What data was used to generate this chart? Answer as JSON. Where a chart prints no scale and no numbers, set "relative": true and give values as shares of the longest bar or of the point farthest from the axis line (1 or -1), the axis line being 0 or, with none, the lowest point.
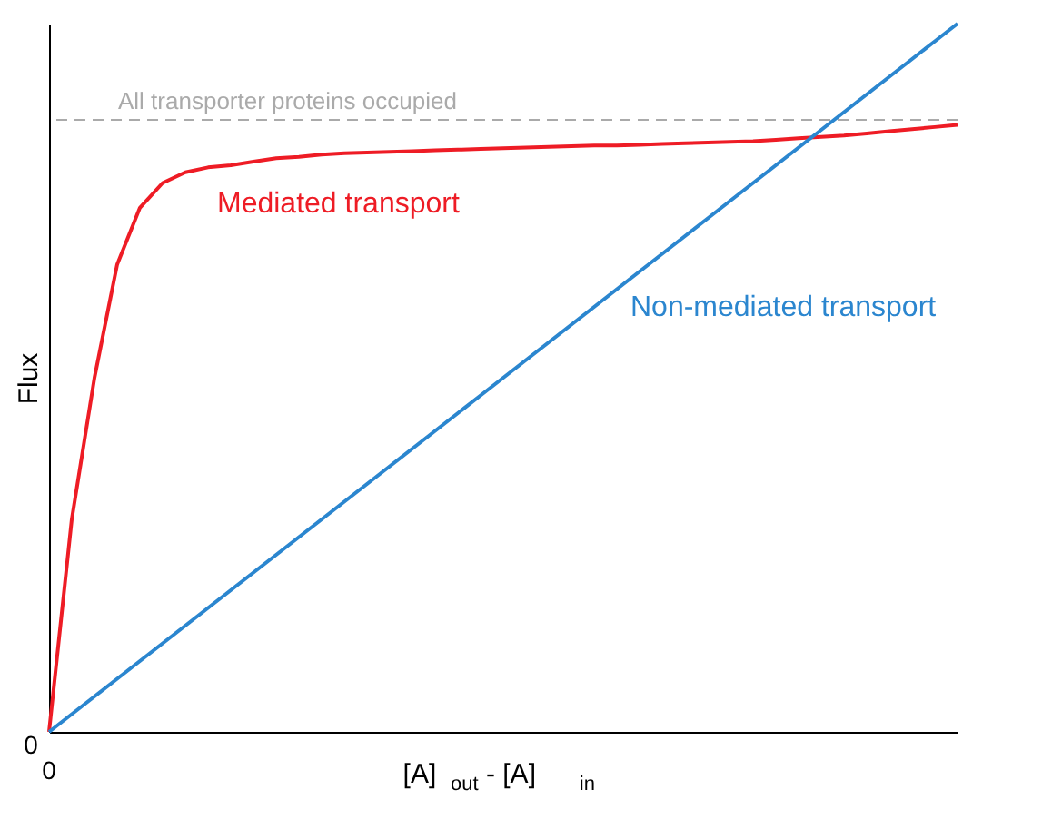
{
  "chart_data": {
    "type": "line",
    "relative": true,
    "xlabel": "[A]$_{out}$ - [A]$_{in}$",
    "ylabel": "Flux",
    "categories": [
      null,
      null,
      null,
      null,
      null,
      null,
      null,
      null,
      null,
      null,
      null,
      null,
      null,
      null,
      null,
      null,
      null,
      null,
      null,
      null,
      null,
      null,
      null,
      null,
      null,
      null,
      null,
      null,
      null,
      null,
      null,
      null,
      null,
      null,
      null,
      null,
      null,
      null,
      null,
      null,
      null
    ],
    "series": [
      {
        "name": "Mediated transport",
        "color": "#ee1c25",
        "values": [
          0,
          0.3,
          0.5,
          0.66,
          0.74,
          0.775,
          0.79,
          0.797,
          0.8,
          0.805,
          0.81,
          0.812,
          0.815,
          0.817,
          0.818,
          0.819,
          0.82,
          0.821,
          0.822,
          0.823,
          0.824,
          0.825,
          0.826,
          0.827,
          0.828,
          0.828,
          0.829,
          0.83,
          0.831,
          0.832,
          0.833,
          0.834,
          0.836,
          0.838,
          0.84,
          0.842,
          0.845,
          0.848,
          0.851,
          0.854,
          0.857
        ]
      },
      {
        "name": "Non-mediated transport",
        "color": "#2b86cf",
        "values": [
          0,
          0.025,
          0.05,
          0.075,
          0.1,
          0.125,
          0.15,
          0.175,
          0.2,
          0.225,
          0.25,
          0.275,
          0.3,
          0.325,
          0.35,
          0.375,
          0.4,
          0.425,
          0.45,
          0.475,
          0.5,
          0.525,
          0.55,
          0.575,
          0.6,
          0.625,
          0.65,
          0.675,
          0.7,
          0.725,
          0.75,
          0.775,
          0.8,
          0.825,
          0.85,
          0.875,
          0.9,
          0.925,
          0.95,
          0.975,
          1
        ]
      }
    ],
    "ref_lines": [
      {
        "axis": "y",
        "value": 0.864,
        "label": "All transporter proteins occupied",
        "color": "#aaaaaa",
        "line_style": "dashed"
      }
    ],
    "annotations": [
      "0",
      "0"
    ],
    "line_style": "solid"
  }
}
